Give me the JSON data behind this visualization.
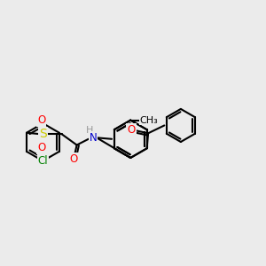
{
  "bg_color": "#ebebeb",
  "bond_color": "#000000",
  "bond_width": 1.5,
  "atom_colors": {
    "O": "#ff0000",
    "N": "#0000cd",
    "S": "#cccc00",
    "Cl": "#008000",
    "H": "#999999",
    "C": "#000000"
  },
  "font_size": 8.5,
  "fig_size": [
    3.0,
    3.0
  ],
  "dpi": 100,
  "xlim": [
    0,
    10
  ],
  "ylim": [
    0,
    10
  ]
}
